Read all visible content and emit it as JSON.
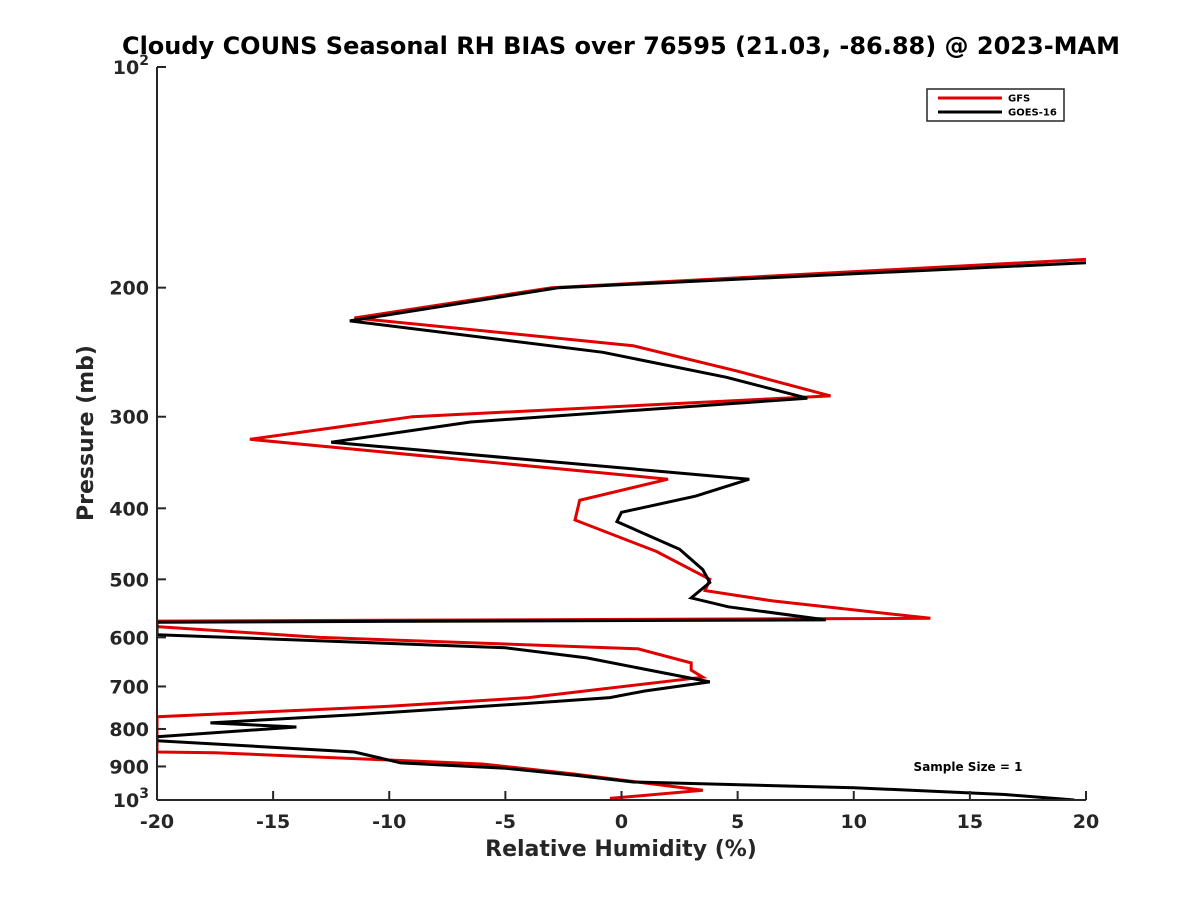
{
  "chart_data": {
    "type": "line",
    "title": "Cloudy COUNS Seasonal RH BIAS over 76595 (21.03, -86.88) @ 2023-MAM",
    "xlabel": "Relative Humidity (%)",
    "ylabel": "Pressure (mb)",
    "xlim": [
      -20,
      20
    ],
    "ylim": [
      100,
      1000
    ],
    "yscale": "log",
    "y_reversed": true,
    "grid": false,
    "legend_position": "top-right",
    "x_ticks": [
      -20,
      -15,
      -10,
      -5,
      0,
      5,
      10,
      15,
      20
    ],
    "x_tick_labels": [
      "-20",
      "-15",
      "-10",
      "-5",
      "0",
      "5",
      "10",
      "15",
      "20"
    ],
    "y_ticks": [
      100,
      200,
      300,
      400,
      500,
      600,
      700,
      800,
      900,
      1000
    ],
    "y_tick_labels": [
      {
        "base": "10",
        "exp": "2"
      },
      {
        "base": "200"
      },
      {
        "base": "300"
      },
      {
        "base": "400"
      },
      {
        "base": "500"
      },
      {
        "base": "600"
      },
      {
        "base": "700"
      },
      {
        "base": "800"
      },
      {
        "base": "900"
      },
      {
        "base": "10",
        "exp": "3"
      }
    ],
    "annotation": "Sample Size = 1",
    "series": [
      {
        "name": "GFS",
        "color": "#e00000",
        "points": [
          [
            20,
            183
          ],
          [
            -3,
            200
          ],
          [
            -11.5,
            220
          ],
          [
            0.5,
            240
          ],
          [
            5,
            260
          ],
          [
            9,
            281
          ],
          [
            -9,
            300
          ],
          [
            -16,
            322
          ],
          [
            2,
            365
          ],
          [
            -1.8,
            390
          ],
          [
            -2,
            415
          ],
          [
            1.5,
            458
          ],
          [
            3.8,
            500
          ],
          [
            3.6,
            518
          ],
          [
            6.5,
            535
          ],
          [
            13.3,
            565
          ],
          [
            -20,
            570
          ],
          [
            -20,
            580
          ],
          [
            -13,
            600
          ],
          [
            0.7,
            622
          ],
          [
            3,
            650
          ],
          [
            3,
            665
          ],
          [
            3.5,
            680
          ],
          [
            -4,
            725
          ],
          [
            -10,
            745
          ],
          [
            -20,
            770
          ],
          [
            -20,
            860
          ],
          [
            -17.5,
            862
          ],
          [
            -10,
            882
          ],
          [
            -6,
            893
          ],
          [
            -2,
            922
          ],
          [
            3.5,
            970
          ],
          [
            -0.5,
            995
          ]
        ]
      },
      {
        "name": "GOES-16",
        "color": "#000000",
        "points": [
          [
            20,
            185
          ],
          [
            -2.7,
            200
          ],
          [
            -11.7,
            222
          ],
          [
            -0.8,
            245
          ],
          [
            4.5,
            265
          ],
          [
            8,
            283
          ],
          [
            -6.5,
            305
          ],
          [
            -12.5,
            325
          ],
          [
            5.5,
            365
          ],
          [
            3.2,
            385
          ],
          [
            0,
            405
          ],
          [
            -0.2,
            417
          ],
          [
            2.5,
            455
          ],
          [
            3.5,
            485
          ],
          [
            3.8,
            505
          ],
          [
            3,
            530
          ],
          [
            4.6,
            545
          ],
          [
            8.8,
            568
          ],
          [
            -20,
            572
          ],
          [
            -20,
            595
          ],
          [
            -5,
            620
          ],
          [
            -1.5,
            640
          ],
          [
            3.8,
            690
          ],
          [
            1,
            710
          ],
          [
            -0.5,
            725
          ],
          [
            -4.5,
            740
          ],
          [
            -11.5,
            765
          ],
          [
            -17.7,
            785
          ],
          [
            -14,
            795
          ],
          [
            -20,
            820
          ],
          [
            -20,
            830
          ],
          [
            -11.5,
            860
          ],
          [
            -9.5,
            890
          ],
          [
            -5,
            905
          ],
          [
            -2,
            925
          ],
          [
            0.5,
            945
          ],
          [
            10,
            962
          ],
          [
            16.5,
            983
          ],
          [
            19.5,
            1000
          ]
        ]
      }
    ]
  }
}
